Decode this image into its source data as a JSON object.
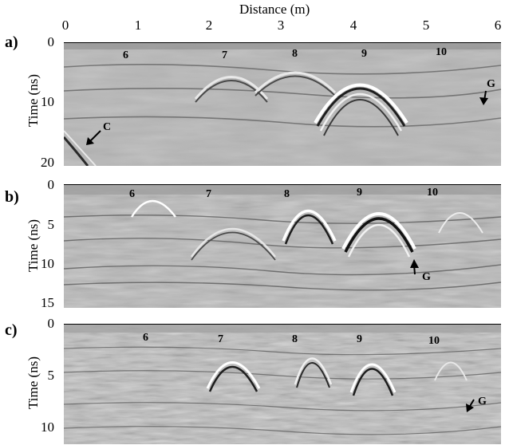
{
  "figure": {
    "xaxis_title": "Distance (m)",
    "xticks": [
      "0",
      "1",
      "2",
      "3",
      "4",
      "5",
      "6"
    ],
    "panels": [
      {
        "label": "a)",
        "ylabel": "Time (ns)",
        "yticks": [
          "0",
          "10",
          "20"
        ],
        "targets": [
          "6",
          "7",
          "8",
          "9",
          "10"
        ],
        "markers": [
          {
            "text": "C"
          },
          {
            "text": "G"
          }
        ]
      },
      {
        "label": "b)",
        "ylabel": "Time (ns)",
        "yticks": [
          "0",
          "5",
          "10",
          "15"
        ],
        "targets": [
          "6",
          "7",
          "8",
          "9",
          "10"
        ],
        "markers": [
          {
            "text": "G"
          }
        ]
      },
      {
        "label": "c)",
        "ylabel": "Time (ns)",
        "yticks": [
          "0",
          "5",
          "10"
        ],
        "targets": [
          "6",
          "7",
          "8",
          "9",
          "10"
        ],
        "markers": [
          {
            "text": "G"
          }
        ]
      }
    ]
  }
}
